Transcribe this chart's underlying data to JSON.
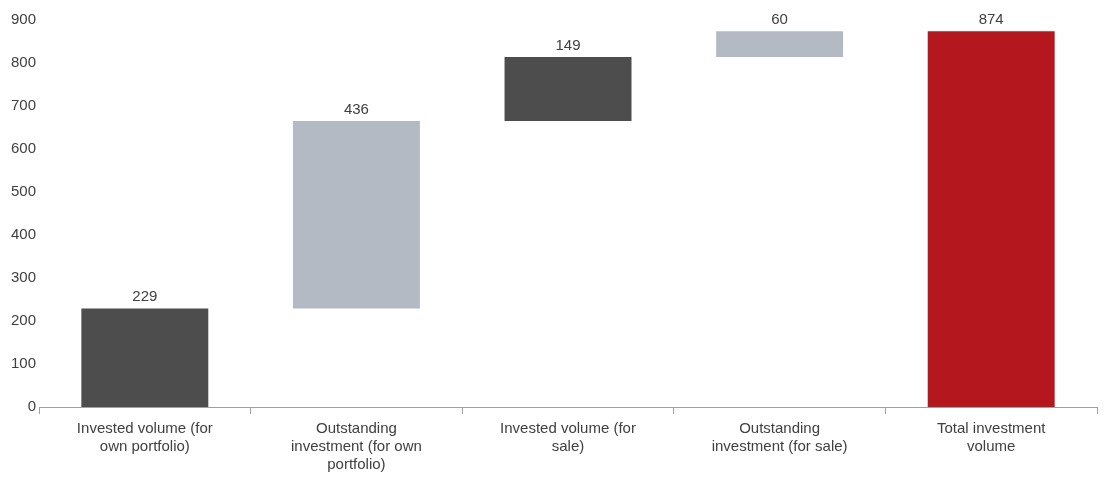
{
  "chart_data": {
    "type": "bar",
    "categories": [
      "Invested volume (for own portfolio)",
      "Outstanding investment (for own portfolio)",
      "Invested volume (for sale)",
      "Outstanding investment (for sale)",
      "Total investment volume"
    ],
    "values": [
      229,
      436,
      149,
      60,
      874
    ],
    "base": [
      0,
      229,
      665,
      814,
      0
    ],
    "colors": [
      "#4d4d4d",
      "#b3bac3",
      "#4d4d4d",
      "#b3bac3",
      "#b5171f"
    ],
    "ylim": [
      0,
      900
    ],
    "yticks": [
      0,
      100,
      200,
      300,
      400,
      500,
      600,
      700,
      800,
      900
    ],
    "grid": false,
    "legend": false,
    "data_labels": true
  }
}
